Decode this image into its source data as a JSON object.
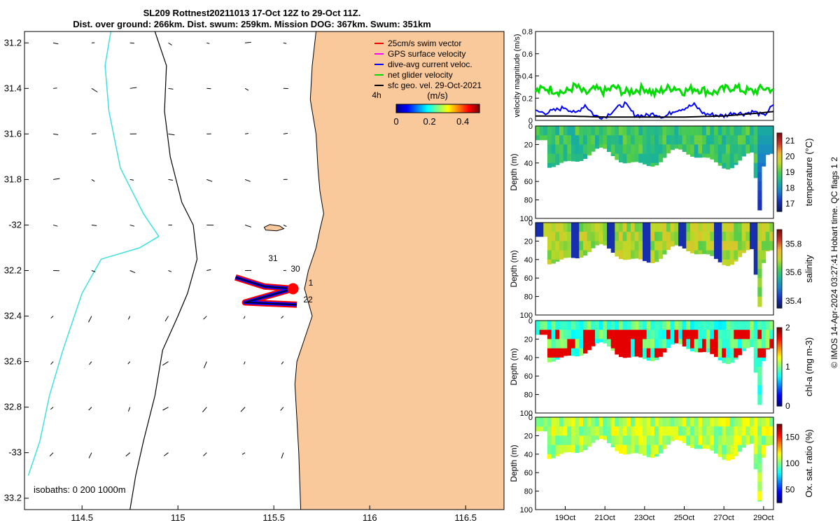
{
  "figure": {
    "title_line1": "SL209 Rottnest20211013 17-Oct 12Z to 29-Oct 11Z.",
    "title_line2": "Dist. over ground: 266km. Dist. swum: 259km. Mission DOG: 367km. Swum: 351km",
    "side_note": "© IMOS 14-Apr-2024 03:27:41 Hobart time. QC flags 1  2",
    "colors": {
      "land": "#f9c89b",
      "coast": "#000000",
      "isobath_cyan": "#40e0e0",
      "glider_red": "#ff0000",
      "glider_blue": "#0000ff",
      "net_green": "#00dd00"
    }
  },
  "chart_data": [
    {
      "type": "map",
      "name": "glider-track-map",
      "xlim": [
        114.2,
        116.7
      ],
      "ylim": [
        -33.25,
        -31.15
      ],
      "xticks": [
        114.5,
        115,
        115.5,
        116,
        116.5
      ],
      "xtick_labels": [
        "114.5",
        "115",
        "115.5",
        "116",
        "116.5"
      ],
      "yticks": [
        -31.2,
        -31.4,
        -31.6,
        -31.8,
        -32,
        -32.2,
        -32.4,
        -32.6,
        -32.8,
        -33,
        -33.2
      ],
      "ytick_labels": [
        "31.2",
        "31.4",
        "31.6",
        "31.8",
        "-32",
        "32.2",
        "32.4",
        "32.6",
        "32.8",
        "-33",
        "33.2"
      ],
      "legend": [
        {
          "label": "25cm/s swim vector",
          "color": "#ff0000"
        },
        {
          "label": "GPS surface velocity",
          "color": "#ff00ff"
        },
        {
          "label": "dive-avg current veloc.",
          "color": "#0000ff"
        },
        {
          "label": "net glider velocity",
          "color": "#00dd00"
        },
        {
          "label": "sfc geo. vel. 29-Oct-2021",
          "color": "#000000"
        }
      ],
      "legend_note": "4h",
      "colorbar": {
        "label": "(m/s)",
        "ticks": [
          0,
          0.2,
          0.4
        ],
        "range": [
          0,
          0.5
        ]
      },
      "isobaths_label": "isobaths: 0   200  1000m",
      "track_day_labels": [
        "31",
        "30",
        "1",
        "22"
      ],
      "track": [
        [
          115.3,
          -32.23
        ],
        [
          115.45,
          -32.27
        ],
        [
          115.6,
          -32.28
        ],
        [
          115.35,
          -32.34
        ],
        [
          115.62,
          -32.35
        ]
      ]
    },
    {
      "type": "line",
      "name": "velocity-magnitude-panel",
      "ylabel": "velocity magnitude (m/s)",
      "ylim": [
        0,
        0.8
      ],
      "yticks": [
        0,
        0.2,
        0.4,
        0.6,
        0.8
      ],
      "xlim": [
        17.5,
        29.5
      ],
      "series": [
        {
          "name": "net glider velocity",
          "color": "#00dd00",
          "x": [
            17.5,
            18,
            18.5,
            19,
            19.5,
            20,
            20.5,
            21,
            21.5,
            22,
            22.5,
            23,
            23.5,
            24,
            24.5,
            25,
            25.5,
            26,
            26.5,
            27,
            27.5,
            28,
            28.5,
            29,
            29.5
          ],
          "values": [
            0.26,
            0.29,
            0.27,
            0.25,
            0.31,
            0.24,
            0.28,
            0.26,
            0.3,
            0.25,
            0.27,
            0.29,
            0.24,
            0.28,
            0.3,
            0.26,
            0.29,
            0.27,
            0.25,
            0.28,
            0.3,
            0.27,
            0.26,
            0.29,
            0.28
          ]
        },
        {
          "name": "dive-avg current veloc.",
          "color": "#0000ff",
          "x": [
            17.5,
            18,
            18.5,
            19,
            19.5,
            20,
            20.5,
            21,
            21.5,
            22,
            22.5,
            23,
            23.5,
            24,
            24.5,
            25,
            25.5,
            26,
            26.5,
            27,
            27.5,
            28,
            28.5,
            29,
            29.5
          ],
          "values": [
            0.08,
            0.07,
            0.09,
            0.12,
            0.06,
            0.14,
            0.04,
            0.03,
            0.1,
            0.15,
            0.05,
            0.04,
            0.06,
            0.03,
            0.09,
            0.11,
            0.14,
            0.06,
            0.05,
            0.04,
            0.07,
            0.06,
            0.08,
            0.04,
            0.14
          ]
        },
        {
          "name": "sfc geo. vel.",
          "color": "#000000",
          "x": [
            17.5,
            19,
            21,
            23,
            25,
            27,
            29,
            29.5
          ],
          "values": [
            0.04,
            0.04,
            0.03,
            0.03,
            0.03,
            0.04,
            0.07,
            0.08
          ]
        }
      ]
    },
    {
      "type": "heatmap",
      "name": "temperature-panel",
      "ylabel": "Depth (m)",
      "ylim": [
        100,
        0
      ],
      "yticks": [
        0,
        20,
        40,
        60,
        80,
        100
      ],
      "colorbar_label": "temperature (°C)",
      "colorbar_ticks": [
        17,
        18,
        19,
        20,
        21
      ],
      "clim": [
        16.5,
        21.5
      ]
    },
    {
      "type": "heatmap",
      "name": "salinity-panel",
      "ylabel": "Depth (m)",
      "ylim": [
        100,
        0
      ],
      "yticks": [
        0,
        20,
        40,
        60,
        80,
        100
      ],
      "colorbar_label": "salinity",
      "colorbar_ticks": [
        35.4,
        35.6,
        35.8
      ],
      "clim": [
        35.35,
        35.9
      ]
    },
    {
      "type": "heatmap",
      "name": "chlorophyll-panel",
      "ylabel": "Depth (m)",
      "ylim": [
        100,
        0
      ],
      "yticks": [
        0,
        20,
        40,
        60,
        80,
        100
      ],
      "colorbar_label": "chl-a (mg m-3)",
      "colorbar_ticks": [
        0,
        1,
        2
      ],
      "clim": [
        0,
        2
      ]
    },
    {
      "type": "heatmap",
      "name": "oxygen-panel",
      "ylabel": "Depth (m)",
      "ylim": [
        100,
        0
      ],
      "yticks": [
        0,
        20,
        40,
        60,
        80,
        100
      ],
      "colorbar_label": "Ox. sat. ratio (%)",
      "colorbar_ticks": [
        50,
        100,
        150
      ],
      "clim": [
        25,
        175
      ],
      "xtick_days": [
        19,
        21,
        23,
        25,
        27,
        29
      ],
      "xtick_labels": [
        "19Oct",
        "21Oct",
        "23Oct",
        "25Oct",
        "27Oct",
        "29Oct"
      ],
      "xlim": [
        17.5,
        29.5
      ]
    }
  ]
}
